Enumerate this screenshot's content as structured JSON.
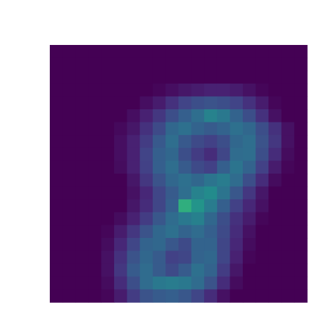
{
  "chart_data": {
    "type": "heatmap",
    "title": "",
    "xlabel": "",
    "ylabel": "",
    "axes_visible": false,
    "colormap": "viridis",
    "value_range": [
      0,
      1
    ],
    "rows": 20,
    "cols": 20,
    "values": [
      [
        0,
        0,
        0,
        0,
        0,
        0,
        0,
        0,
        0,
        0,
        0,
        0,
        0,
        0,
        0,
        0,
        0,
        0,
        0,
        0
      ],
      [
        0,
        0,
        0,
        0,
        0,
        0,
        0,
        0,
        0,
        0,
        0,
        0,
        0,
        0,
        0,
        0,
        0,
        0,
        0,
        0
      ],
      [
        0,
        0,
        0,
        0,
        0,
        0,
        0,
        0,
        0,
        0,
        0,
        0,
        0,
        0,
        0,
        0,
        0,
        0,
        0,
        0
      ],
      [
        0,
        0,
        0,
        0,
        0,
        0,
        0,
        0,
        0.02,
        0.05,
        0.08,
        0.1,
        0.12,
        0.12,
        0.1,
        0.06,
        0.02,
        0,
        0,
        0
      ],
      [
        0,
        0,
        0,
        0,
        0,
        0,
        0,
        0.05,
        0.1,
        0.18,
        0.25,
        0.3,
        0.32,
        0.3,
        0.25,
        0.18,
        0.1,
        0.02,
        0,
        0
      ],
      [
        0,
        0,
        0,
        0,
        0,
        0,
        0.05,
        0.12,
        0.2,
        0.3,
        0.38,
        0.45,
        0.55,
        0.5,
        0.4,
        0.3,
        0.18,
        0.06,
        0,
        0
      ],
      [
        0,
        0,
        0,
        0,
        0,
        0.03,
        0.08,
        0.18,
        0.28,
        0.42,
        0.46,
        0.4,
        0.36,
        0.4,
        0.46,
        0.42,
        0.3,
        0.18,
        0.06,
        0
      ],
      [
        0,
        0,
        0,
        0,
        0,
        0.05,
        0.12,
        0.22,
        0.35,
        0.45,
        0.35,
        0.28,
        0.24,
        0.3,
        0.42,
        0.45,
        0.32,
        0.2,
        0.06,
        0
      ],
      [
        0,
        0,
        0,
        0,
        0,
        0.05,
        0.12,
        0.25,
        0.38,
        0.42,
        0.3,
        0.22,
        0.16,
        0.26,
        0.44,
        0.45,
        0.3,
        0.16,
        0.04,
        0
      ],
      [
        0,
        0,
        0,
        0,
        0,
        0.04,
        0.12,
        0.24,
        0.38,
        0.45,
        0.36,
        0.28,
        0.24,
        0.38,
        0.48,
        0.4,
        0.24,
        0.1,
        0.02,
        0
      ],
      [
        0,
        0,
        0,
        0,
        0,
        0,
        0.08,
        0.2,
        0.32,
        0.42,
        0.46,
        0.42,
        0.48,
        0.52,
        0.44,
        0.3,
        0.16,
        0.04,
        0,
        0
      ],
      [
        0,
        0,
        0,
        0,
        0,
        0,
        0.06,
        0.14,
        0.26,
        0.36,
        0.45,
        0.55,
        0.6,
        0.48,
        0.34,
        0.2,
        0.08,
        0,
        0,
        0
      ],
      [
        0,
        0,
        0,
        0,
        0,
        0,
        0.08,
        0.16,
        0.26,
        0.38,
        0.72,
        0.64,
        0.52,
        0.38,
        0.24,
        0.14,
        0.06,
        0,
        0,
        0
      ],
      [
        0,
        0,
        0,
        0,
        0,
        0.04,
        0.12,
        0.22,
        0.34,
        0.44,
        0.5,
        0.54,
        0.42,
        0.3,
        0.18,
        0.1,
        0.02,
        0,
        0,
        0
      ],
      [
        0,
        0,
        0,
        0,
        0.02,
        0.1,
        0.2,
        0.32,
        0.42,
        0.46,
        0.4,
        0.44,
        0.38,
        0.28,
        0.16,
        0.06,
        0,
        0,
        0,
        0
      ],
      [
        0,
        0,
        0,
        0,
        0.04,
        0.14,
        0.26,
        0.4,
        0.42,
        0.34,
        0.28,
        0.4,
        0.4,
        0.26,
        0.14,
        0.04,
        0,
        0,
        0,
        0
      ],
      [
        0,
        0,
        0,
        0,
        0.06,
        0.18,
        0.32,
        0.42,
        0.36,
        0.24,
        0.26,
        0.4,
        0.42,
        0.26,
        0.12,
        0.02,
        0,
        0,
        0,
        0
      ],
      [
        0,
        0,
        0,
        0,
        0.06,
        0.2,
        0.36,
        0.44,
        0.36,
        0.28,
        0.36,
        0.46,
        0.4,
        0.22,
        0.08,
        0,
        0,
        0,
        0,
        0
      ],
      [
        0,
        0,
        0,
        0,
        0.04,
        0.16,
        0.3,
        0.44,
        0.5,
        0.52,
        0.5,
        0.44,
        0.32,
        0.16,
        0.04,
        0,
        0,
        0,
        0,
        0
      ],
      [
        0,
        0,
        0,
        0,
        0.02,
        0.1,
        0.22,
        0.32,
        0.36,
        0.38,
        0.34,
        0.26,
        0.16,
        0.06,
        0,
        0,
        0,
        0,
        0,
        0
      ]
    ]
  }
}
